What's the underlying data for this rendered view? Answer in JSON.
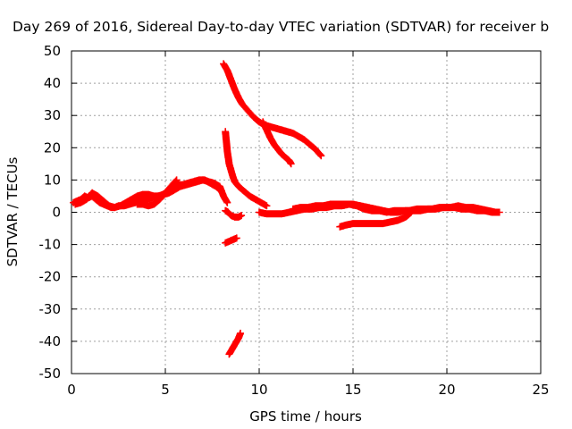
{
  "chart_data": {
    "type": "scatter",
    "title": "Day 269 of 2016, Sidereal Day-to-day VTEC variation (SDTVAR) for receiver b",
    "xlabel": "GPS time / hours",
    "ylabel": "SDTVAR / TECUs",
    "xlim": [
      0,
      25
    ],
    "ylim": [
      -50,
      50
    ],
    "xticks": [
      0,
      5,
      10,
      15,
      20,
      25
    ],
    "yticks": [
      -50,
      -40,
      -30,
      -20,
      -10,
      0,
      10,
      20,
      30,
      40,
      50
    ],
    "grid": true,
    "marker": "plus",
    "color": "#ff0000",
    "series": [
      {
        "x": [
          0.1,
          0.3,
          0.5,
          0.7,
          0.9,
          1.1,
          1.3,
          1.5,
          1.7,
          1.9,
          2.1,
          2.3,
          2.5,
          2.8,
          3.1,
          3.4,
          3.7,
          4.0,
          4.3,
          4.6,
          4.9,
          5.2,
          5.5,
          5.8,
          6.1,
          6.4,
          6.7,
          7.0,
          7.3,
          7.6,
          7.9,
          8.1,
          8.3
        ],
        "y": [
          3,
          3.5,
          4,
          5,
          4.5,
          5,
          4,
          3,
          2.5,
          2,
          1.5,
          1.5,
          2,
          2,
          2.5,
          3,
          3.5,
          4,
          4.5,
          5,
          5.5,
          6,
          7,
          8,
          8.5,
          9,
          9.5,
          10,
          9.5,
          9,
          8,
          5,
          3
        ]
      },
      {
        "x": [
          0.2,
          0.5,
          0.8,
          1.1,
          1.4,
          1.7,
          2.0,
          2.3,
          2.6,
          2.9,
          3.2,
          3.5,
          3.8,
          4.1,
          4.4,
          4.7,
          5.0,
          5.3,
          5.6
        ],
        "y": [
          2.5,
          3,
          4,
          6,
          5,
          3.5,
          2,
          1.5,
          2,
          3,
          4,
          5,
          5.5,
          5.5,
          5,
          5,
          6,
          8,
          10
        ]
      },
      {
        "x": [
          3.5,
          3.8,
          4.1,
          4.4,
          4.7,
          5.0,
          5.3,
          5.6,
          5.9,
          6.2,
          6.5,
          6.8,
          7.1,
          7.4,
          7.7,
          8.0
        ],
        "y": [
          2.5,
          2.5,
          2,
          2.5,
          4,
          6,
          7.5,
          8.5,
          8.5,
          9,
          9.5,
          10,
          10,
          9,
          8,
          6.5
        ]
      },
      {
        "x": [
          8.1,
          8.3,
          8.5,
          8.7,
          8.9,
          9.1,
          9.4,
          9.7,
          10.0,
          10.3,
          10.6,
          10.9,
          11.2,
          11.5,
          11.8,
          12.1,
          12.4,
          12.7,
          13.0,
          13.3
        ],
        "y": [
          46,
          44,
          41,
          38,
          35.5,
          33.5,
          31.5,
          29.5,
          28,
          27,
          26.5,
          26,
          25.5,
          25,
          24.5,
          23.5,
          22.5,
          21,
          19.5,
          17.5
        ]
      },
      {
        "x": [
          10.2,
          10.4,
          10.6,
          10.8,
          11.0,
          11.2,
          11.4,
          11.6,
          11.7
        ],
        "y": [
          28,
          25.5,
          23,
          21,
          19.5,
          18,
          17,
          16,
          15
        ]
      },
      {
        "x": [
          8.2,
          8.25,
          8.3,
          8.35,
          8.4,
          8.5,
          8.6,
          8.7,
          8.9,
          9.2,
          9.5,
          9.8,
          10.1,
          10.4
        ],
        "y": [
          25,
          22,
          19,
          17,
          15,
          13,
          11,
          9.5,
          8,
          6.5,
          5,
          4,
          3,
          2
        ]
      },
      {
        "x": [
          8.2,
          8.35,
          8.5,
          8.7,
          8.9,
          9.05
        ],
        "y": [
          0.5,
          0,
          -1,
          -1.5,
          -1.5,
          -1
        ]
      },
      {
        "x": [
          8.2,
          8.4,
          8.6,
          8.8
        ],
        "y": [
          -9.5,
          -9,
          -8.5,
          -8
        ]
      },
      {
        "x": [
          8.4,
          8.5,
          8.6,
          8.7,
          8.8,
          8.9,
          9.0
        ],
        "y": [
          -44,
          -43,
          -42,
          -41,
          -40,
          -39,
          -37.5
        ]
      },
      {
        "x": [
          10.0,
          10.4,
          10.8,
          11.2,
          11.6,
          12.0,
          12.4,
          12.8,
          13.2,
          13.6,
          14.0,
          14.4,
          14.8,
          15.2,
          15.6,
          16.0,
          16.4,
          16.8,
          17.2,
          17.6,
          18.0,
          18.4,
          18.8,
          19.2,
          19.6,
          20.0,
          20.4,
          20.8,
          21.2,
          21.6,
          22.0,
          22.4,
          22.8
        ],
        "y": [
          0,
          -0.5,
          -0.5,
          -0.5,
          0,
          0.5,
          1,
          1,
          1.5,
          1.5,
          2,
          2,
          2.5,
          2,
          1,
          0.5,
          0.5,
          0,
          0.5,
          0.5,
          0.5,
          1,
          1,
          1,
          1.5,
          1.5,
          1.5,
          1,
          1,
          0.5,
          0.5,
          0,
          0
        ]
      },
      {
        "x": [
          11.8,
          12.2,
          12.6,
          13.0,
          13.4,
          13.8,
          14.2,
          14.6,
          15.0,
          15.4,
          15.8,
          16.2,
          16.6,
          17.0,
          17.4,
          17.8,
          18.2,
          18.6,
          19.0,
          19.4,
          19.8,
          20.2,
          20.6,
          21.0,
          21.4,
          21.8,
          22.2,
          22.6
        ],
        "y": [
          1,
          1.5,
          1.5,
          2,
          2,
          2.5,
          2.5,
          2.5,
          2.5,
          2,
          1.5,
          1,
          0.5,
          0,
          0,
          0.5,
          0.5,
          0.5,
          1,
          1,
          1.5,
          1.5,
          2,
          1.5,
          1.5,
          1,
          0.5,
          0
        ]
      },
      {
        "x": [
          14.3,
          14.6,
          15.0,
          15.4,
          15.8,
          16.2,
          16.6,
          17.0,
          17.4,
          17.8,
          18.1
        ],
        "y": [
          -4.5,
          -4,
          -3.5,
          -3.5,
          -3.5,
          -3.5,
          -3.5,
          -3,
          -2.5,
          -1.5,
          0
        ]
      }
    ]
  }
}
